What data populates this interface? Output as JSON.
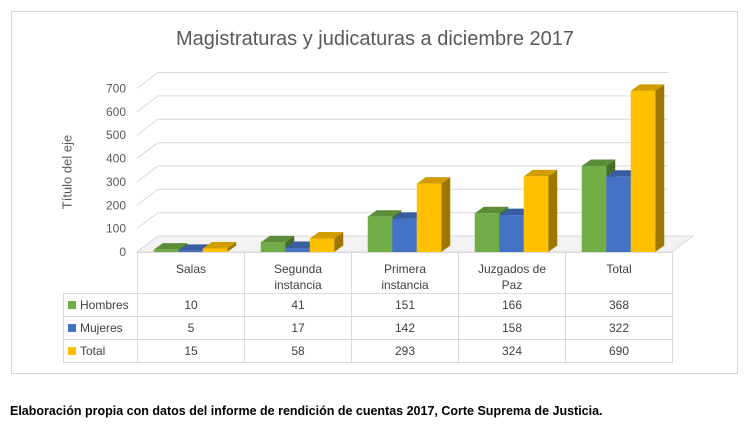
{
  "colors": {
    "hombres": "#70ad47",
    "mujeres": "#4472c4",
    "total": "#ffc000"
  },
  "caption": "Elaboración propia con datos del informe de rendición de cuentas 2017, Corte Suprema de Justicia.",
  "chart_data": {
    "type": "bar",
    "subtype": "3d-clustered-column-with-data-table",
    "title": "Magistraturas y judicaturas a diciembre 2017",
    "ylabel": "Título del eje",
    "ylim": [
      0,
      700
    ],
    "yticks": [
      "0",
      "100",
      "200",
      "300",
      "400",
      "500",
      "600",
      "700"
    ],
    "grid": true,
    "categories": [
      [
        "Salas"
      ],
      [
        "Segunda",
        "instancia"
      ],
      [
        "Primera",
        "instancia"
      ],
      [
        "Juzgados de",
        "Paz"
      ],
      [
        "Total"
      ]
    ],
    "series": [
      {
        "name": "Hombres",
        "color": "#70ad47",
        "values": [
          10,
          41,
          151,
          166,
          368
        ]
      },
      {
        "name": "Mujeres",
        "color": "#4472c4",
        "values": [
          5,
          17,
          142,
          158,
          322
        ]
      },
      {
        "name": "Total",
        "color": "#ffc000",
        "values": [
          15,
          58,
          293,
          324,
          690
        ]
      }
    ]
  }
}
